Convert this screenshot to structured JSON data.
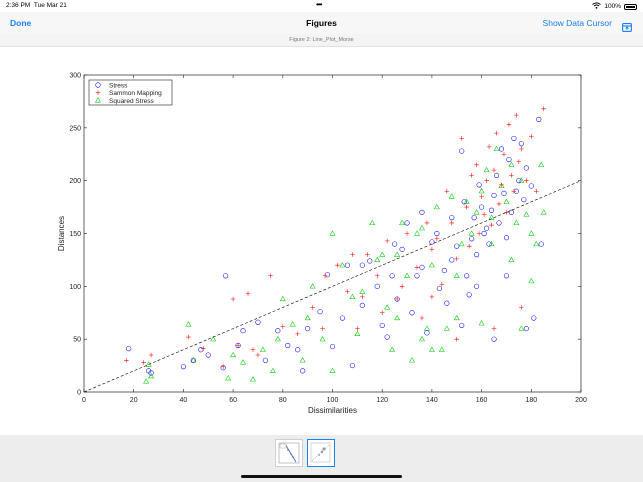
{
  "status_bar": {
    "time": "2:36 PM",
    "date": "Tue Mar 21",
    "battery": "100%"
  },
  "nav": {
    "done_label": "Done",
    "title": "Figures",
    "data_cursor_label": "Show Data Cursor",
    "share_icon": "share-icon"
  },
  "figure_title": "Figure 2: Line_Plot_Morse",
  "chart_data": {
    "type": "scatter",
    "title": "",
    "xlabel": "Dissimilarities",
    "ylabel": "Distances",
    "xlim": [
      0,
      200
    ],
    "ylim": [
      0,
      300
    ],
    "xticks": [
      0,
      20,
      40,
      60,
      80,
      100,
      120,
      140,
      160,
      180,
      200
    ],
    "yticks": [
      0,
      50,
      100,
      150,
      200,
      250,
      300
    ],
    "legend_position": "top-left",
    "grid": false,
    "reference_line": {
      "style": "dashed",
      "color": "#000000",
      "points": [
        [
          0,
          0
        ],
        [
          200,
          200
        ]
      ]
    },
    "series": [
      {
        "name": "Stress",
        "marker": "circle",
        "color": "#0000ff",
        "values": [
          [
            18,
            41
          ],
          [
            26,
            20
          ],
          [
            27,
            18
          ],
          [
            40,
            24
          ],
          [
            44,
            30
          ],
          [
            47,
            40
          ],
          [
            50,
            35
          ],
          [
            56,
            23
          ],
          [
            57,
            110
          ],
          [
            62,
            44
          ],
          [
            64,
            58
          ],
          [
            70,
            66
          ],
          [
            73,
            30
          ],
          [
            78,
            58
          ],
          [
            82,
            44
          ],
          [
            88,
            20
          ],
          [
            95,
            76
          ],
          [
            98,
            111
          ],
          [
            100,
            43
          ],
          [
            104,
            70
          ],
          [
            106,
            120
          ],
          [
            108,
            25
          ],
          [
            112,
            82
          ],
          [
            115,
            124
          ],
          [
            118,
            100
          ],
          [
            120,
            63
          ],
          [
            122,
            52
          ],
          [
            124,
            110
          ],
          [
            126,
            88
          ],
          [
            128,
            135
          ],
          [
            130,
            160
          ],
          [
            132,
            75
          ],
          [
            134,
            110
          ],
          [
            136,
            118
          ],
          [
            138,
            56
          ],
          [
            140,
            142
          ],
          [
            142,
            150
          ],
          [
            143,
            98
          ],
          [
            145,
            115
          ],
          [
            146,
            84
          ],
          [
            148,
            125
          ],
          [
            150,
            138
          ],
          [
            152,
            63
          ],
          [
            153,
            180
          ],
          [
            154,
            110
          ],
          [
            155,
            92
          ],
          [
            156,
            145
          ],
          [
            157,
            165
          ],
          [
            158,
            130
          ],
          [
            159,
            196
          ],
          [
            160,
            175
          ],
          [
            161,
            150
          ],
          [
            162,
            155
          ],
          [
            163,
            140
          ],
          [
            164,
            172
          ],
          [
            165,
            186
          ],
          [
            166,
            205
          ],
          [
            167,
            160
          ],
          [
            168,
            230
          ],
          [
            169,
            188
          ],
          [
            170,
            146
          ],
          [
            171,
            220
          ],
          [
            172,
            170
          ],
          [
            173,
            240
          ],
          [
            174,
            190
          ],
          [
            175,
            200
          ],
          [
            176,
            235
          ],
          [
            177,
            182
          ],
          [
            178,
            212
          ],
          [
            180,
            195
          ],
          [
            181,
            70
          ],
          [
            183,
            258
          ],
          [
            184,
            140
          ],
          [
            152,
            228
          ],
          [
            158,
            100
          ],
          [
            165,
            50
          ],
          [
            170,
            110
          ],
          [
            178,
            60
          ],
          [
            136,
            170
          ],
          [
            148,
            165
          ],
          [
            125,
            140
          ],
          [
            112,
            120
          ],
          [
            90,
            60
          ],
          [
            86,
            40
          ]
        ]
      },
      {
        "name": "Sammon Mapping",
        "marker": "plus",
        "color": "#ff0000",
        "values": [
          [
            17,
            30
          ],
          [
            27,
            35
          ],
          [
            42,
            52
          ],
          [
            48,
            41
          ],
          [
            56,
            24
          ],
          [
            60,
            88
          ],
          [
            62,
            44
          ],
          [
            66,
            93
          ],
          [
            70,
            35
          ],
          [
            75,
            110
          ],
          [
            80,
            62
          ],
          [
            86,
            55
          ],
          [
            92,
            80
          ],
          [
            97,
            110
          ],
          [
            102,
            120
          ],
          [
            106,
            95
          ],
          [
            110,
            60
          ],
          [
            114,
            130
          ],
          [
            118,
            110
          ],
          [
            122,
            143
          ],
          [
            126,
            88
          ],
          [
            130,
            150
          ],
          [
            134,
            118
          ],
          [
            136,
            70
          ],
          [
            138,
            160
          ],
          [
            140,
            135
          ],
          [
            142,
            145
          ],
          [
            144,
            102
          ],
          [
            146,
            190
          ],
          [
            148,
            160
          ],
          [
            150,
            126
          ],
          [
            152,
            240
          ],
          [
            154,
            175
          ],
          [
            155,
            138
          ],
          [
            156,
            205
          ],
          [
            158,
            215
          ],
          [
            159,
            150
          ],
          [
            160,
            185
          ],
          [
            161,
            168
          ],
          [
            162,
            200
          ],
          [
            163,
            232
          ],
          [
            164,
            158
          ],
          [
            165,
            210
          ],
          [
            166,
            245
          ],
          [
            167,
            178
          ],
          [
            168,
            196
          ],
          [
            169,
            225
          ],
          [
            170,
            170
          ],
          [
            171,
            253
          ],
          [
            172,
            205
          ],
          [
            173,
            190
          ],
          [
            174,
            262
          ],
          [
            175,
            218
          ],
          [
            176,
            230
          ],
          [
            178,
            200
          ],
          [
            180,
            242
          ],
          [
            182,
            190
          ],
          [
            185,
            268
          ],
          [
            128,
            100
          ],
          [
            120,
            75
          ],
          [
            112,
            90
          ],
          [
            140,
            90
          ],
          [
            150,
            50
          ],
          [
            165,
            60
          ],
          [
            176,
            80
          ],
          [
            108,
            130
          ],
          [
            96,
            60
          ],
          [
            68,
            40
          ],
          [
            24,
            28
          ]
        ]
      },
      {
        "name": "Squared Stress",
        "marker": "triangle",
        "color": "#00cc00",
        "values": [
          [
            25,
            10
          ],
          [
            26,
            26
          ],
          [
            27,
            15
          ],
          [
            42,
            64
          ],
          [
            44,
            30
          ],
          [
            52,
            50
          ],
          [
            58,
            13
          ],
          [
            60,
            35
          ],
          [
            64,
            28
          ],
          [
            68,
            12
          ],
          [
            72,
            40
          ],
          [
            76,
            20
          ],
          [
            80,
            88
          ],
          [
            84,
            64
          ],
          [
            88,
            30
          ],
          [
            92,
            100
          ],
          [
            96,
            50
          ],
          [
            100,
            150
          ],
          [
            104,
            120
          ],
          [
            108,
            90
          ],
          [
            112,
            95
          ],
          [
            116,
            160
          ],
          [
            120,
            130
          ],
          [
            122,
            80
          ],
          [
            124,
            40
          ],
          [
            126,
            70
          ],
          [
            128,
            160
          ],
          [
            130,
            110
          ],
          [
            132,
            30
          ],
          [
            134,
            150
          ],
          [
            136,
            50
          ],
          [
            138,
            60
          ],
          [
            140,
            40
          ],
          [
            142,
            175
          ],
          [
            144,
            40
          ],
          [
            146,
            60
          ],
          [
            148,
            185
          ],
          [
            150,
            70
          ],
          [
            152,
            140
          ],
          [
            154,
            180
          ],
          [
            156,
            150
          ],
          [
            158,
            170
          ],
          [
            160,
            190
          ],
          [
            162,
            210
          ],
          [
            164,
            165
          ],
          [
            166,
            230
          ],
          [
            168,
            195
          ],
          [
            170,
            180
          ],
          [
            172,
            215
          ],
          [
            174,
            160
          ],
          [
            176,
            200
          ],
          [
            178,
            168
          ],
          [
            180,
            150
          ],
          [
            182,
            140
          ],
          [
            184,
            215
          ],
          [
            185,
            170
          ],
          [
            136,
            155
          ],
          [
            126,
            130
          ],
          [
            118,
            125
          ],
          [
            160,
            65
          ],
          [
            164,
            140
          ],
          [
            172,
            125
          ],
          [
            150,
            110
          ],
          [
            180,
            105
          ],
          [
            176,
            60
          ],
          [
            140,
            120
          ],
          [
            110,
            55
          ],
          [
            90,
            70
          ],
          [
            78,
            50
          ],
          [
            100,
            20
          ]
        ]
      }
    ]
  }
}
